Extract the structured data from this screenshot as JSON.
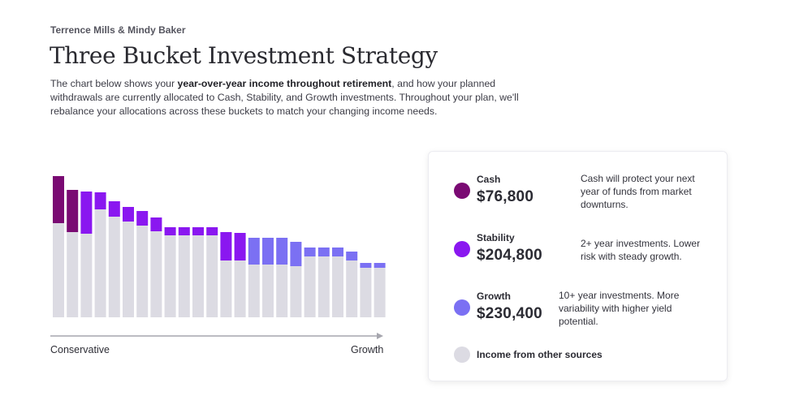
{
  "header": {
    "clients": "Terrence Mills & Mindy Baker",
    "title": "Three Bucket Investment Strategy",
    "desc_pre": "The chart below shows your ",
    "desc_bold": "year-over-year income throughout retirement",
    "desc_post": ", and how your planned withdrawals are currently allocated to Cash, Stability, and Growth investments. Throughout your plan, we'll rebalance your allocations across these buckets to match your changing income needs."
  },
  "colors": {
    "cash": "#7a0a73",
    "stability": "#8a17f0",
    "growth": "#7b70f3",
    "other": "#dcdbe3",
    "axis": "#a6a6ae"
  },
  "chart_data": {
    "type": "bar",
    "stacked": true,
    "xlabel_left": "Conservative",
    "xlabel_right": "Growth",
    "bars": [
      {
        "other": 116,
        "cash": 58,
        "stability": 0,
        "growth": 0
      },
      {
        "other": 105,
        "cash": 52,
        "stability": 0,
        "growth": 0
      },
      {
        "other": 103,
        "cash": 0,
        "stability": 52,
        "growth": 0
      },
      {
        "other": 133,
        "cash": 0,
        "stability": 21,
        "growth": 0
      },
      {
        "other": 124,
        "cash": 0,
        "stability": 19,
        "growth": 0
      },
      {
        "other": 118,
        "cash": 0,
        "stability": 18,
        "growth": 0
      },
      {
        "other": 113,
        "cash": 0,
        "stability": 18,
        "growth": 0
      },
      {
        "other": 106,
        "cash": 0,
        "stability": 17,
        "growth": 0
      },
      {
        "other": 101,
        "cash": 0,
        "stability": 10,
        "growth": 0
      },
      {
        "other": 101,
        "cash": 0,
        "stability": 10,
        "growth": 0
      },
      {
        "other": 101,
        "cash": 0,
        "stability": 10,
        "growth": 0
      },
      {
        "other": 101,
        "cash": 0,
        "stability": 10,
        "growth": 0
      },
      {
        "other": 70,
        "cash": 0,
        "stability": 35,
        "growth": 0
      },
      {
        "other": 70,
        "cash": 0,
        "stability": 34,
        "growth": 0
      },
      {
        "other": 65,
        "cash": 0,
        "stability": 0,
        "growth": 33
      },
      {
        "other": 65,
        "cash": 0,
        "stability": 0,
        "growth": 33
      },
      {
        "other": 65,
        "cash": 0,
        "stability": 0,
        "growth": 33
      },
      {
        "other": 63,
        "cash": 0,
        "stability": 0,
        "growth": 30
      },
      {
        "other": 75,
        "cash": 0,
        "stability": 0,
        "growth": 11
      },
      {
        "other": 75,
        "cash": 0,
        "stability": 0,
        "growth": 11
      },
      {
        "other": 75,
        "cash": 0,
        "stability": 0,
        "growth": 11
      },
      {
        "other": 70,
        "cash": 0,
        "stability": 0,
        "growth": 11
      },
      {
        "other": 61,
        "cash": 0,
        "stability": 0,
        "growth": 6
      },
      {
        "other": 61,
        "cash": 0,
        "stability": 0,
        "growth": 6
      }
    ]
  },
  "legend": {
    "cash": {
      "name": "Cash",
      "amount": "$76,800",
      "desc": "Cash will protect your next year of funds from market downturns."
    },
    "stability": {
      "name": "Stability",
      "amount": "$204,800",
      "desc": "2+ year investments. Lower risk with steady growth."
    },
    "growth": {
      "name": "Growth",
      "amount": "$230,400",
      "desc": "10+ year investments. More variability with higher yield potential."
    },
    "other": {
      "name": "Income from other sources"
    }
  }
}
